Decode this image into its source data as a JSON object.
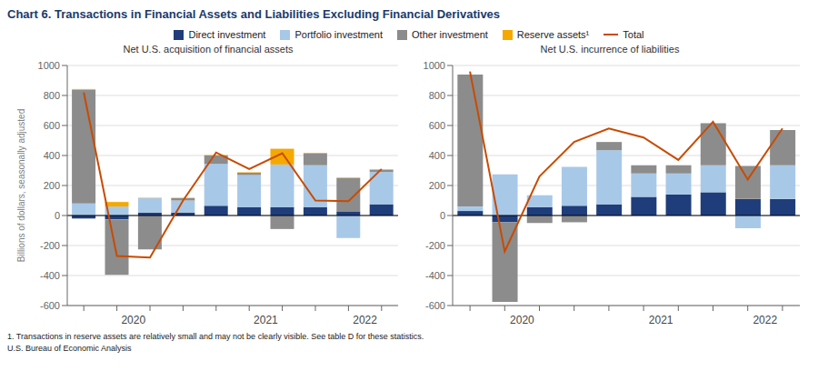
{
  "title": "Chart 6. Transactions in Financial Assets and Liabilities Excluding Financial Derivatives",
  "annotations": [
    "1. Transactions in reserve assets are relatively small and may not be clearly visible. See table D for these statistics.",
    "U.S. Bureau of Economic Analysis"
  ],
  "chart_data": [
    {
      "type": "bar",
      "stacked": true,
      "subtitle": "Net U.S. acquisition of financial assets",
      "ylabel": "Billions of dollars, seasonally adjusted",
      "categories": [
        null,
        "2020",
        null,
        null,
        null,
        "2021",
        null,
        null,
        "2022",
        null
      ],
      "ylim": [
        -600,
        1000
      ],
      "yticks": [
        -600,
        -400,
        -200,
        0,
        200,
        400,
        600,
        800,
        1000
      ],
      "grid": true,
      "legend": "top",
      "series": [
        {
          "name": "Direct investment",
          "type": "bar",
          "color": "#1f3d7a",
          "values": [
            -20,
            -25,
            20,
            20,
            65,
            55,
            55,
            55,
            25,
            75
          ]
        },
        {
          "name": "Portfolio investment",
          "type": "bar",
          "color": "#a8c8e8",
          "values": [
            80,
            60,
            95,
            80,
            280,
            215,
            285,
            280,
            -150,
            215
          ]
        },
        {
          "name": "Other investment",
          "type": "bar",
          "color": "#8c8c8c",
          "values": [
            760,
            -370,
            -225,
            15,
            55,
            15,
            -90,
            80,
            225,
            15
          ]
        },
        {
          "name": "Reserve assets¹",
          "type": "bar",
          "color": "#f5a800",
          "values": [
            3,
            30,
            3,
            3,
            3,
            3,
            105,
            3,
            3,
            3
          ]
        },
        {
          "name": "Total",
          "type": "line",
          "color": "#c84b00",
          "values": [
            820,
            -270,
            -280,
            100,
            420,
            310,
            415,
            100,
            95,
            310
          ]
        }
      ]
    },
    {
      "type": "bar",
      "stacked": true,
      "subtitle": "Net U.S. incurrence of liabilities",
      "categories": [
        null,
        "2020",
        null,
        null,
        null,
        "2021",
        null,
        null,
        "2022",
        null
      ],
      "ylim": [
        -600,
        1000
      ],
      "yticks": [
        -600,
        -400,
        -200,
        0,
        200,
        400,
        600,
        800,
        1000
      ],
      "grid": true,
      "series": [
        {
          "name": "Direct investment",
          "type": "bar",
          "color": "#1f3d7a",
          "values": [
            30,
            -45,
            55,
            65,
            75,
            125,
            140,
            155,
            110,
            110
          ]
        },
        {
          "name": "Portfolio investment",
          "type": "bar",
          "color": "#a8c8e8",
          "values": [
            30,
            275,
            80,
            260,
            360,
            155,
            140,
            180,
            -85,
            225
          ]
        },
        {
          "name": "Other investment",
          "type": "bar",
          "color": "#8c8c8c",
          "values": [
            880,
            -530,
            -50,
            -45,
            55,
            55,
            55,
            280,
            220,
            235
          ]
        },
        {
          "name": "Reserve assets¹",
          "type": "bar",
          "color": "#f5a800",
          "values": [
            0,
            0,
            0,
            0,
            0,
            0,
            0,
            0,
            0,
            0
          ]
        },
        {
          "name": "Total",
          "type": "line",
          "color": "#c84b00",
          "values": [
            960,
            -240,
            260,
            490,
            580,
            520,
            370,
            625,
            240,
            580
          ]
        }
      ]
    }
  ]
}
